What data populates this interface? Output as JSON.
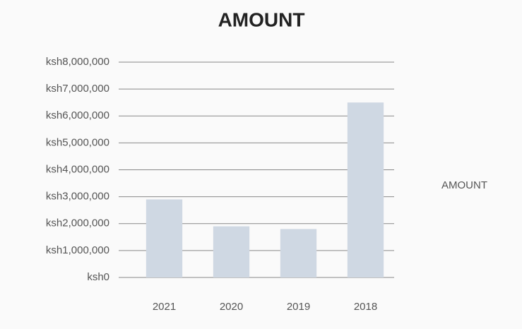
{
  "chart_data": {
    "type": "bar",
    "title": "AMOUNT",
    "categories": [
      "2021",
      "2020",
      "2019",
      "2018"
    ],
    "series": [
      {
        "name": "AMOUNT",
        "color": "#cfd8e3",
        "values": [
          2900000,
          1900000,
          1800000,
          6500000
        ]
      }
    ],
    "ylim": [
      0,
      8000000
    ],
    "yticks": [
      {
        "value": 0,
        "label": "ksh0"
      },
      {
        "value": 1000000,
        "label": "ksh1,000,000"
      },
      {
        "value": 2000000,
        "label": "ksh2,000,000"
      },
      {
        "value": 3000000,
        "label": "ksh3,000,000"
      },
      {
        "value": 4000000,
        "label": "ksh4,000,000"
      },
      {
        "value": 5000000,
        "label": "ksh5,000,000"
      },
      {
        "value": 6000000,
        "label": "ksh6,000,000"
      },
      {
        "value": 7000000,
        "label": "ksh7,000,000"
      },
      {
        "value": 8000000,
        "label": "ksh8,000,000"
      }
    ],
    "grid": true,
    "legend": "right"
  }
}
